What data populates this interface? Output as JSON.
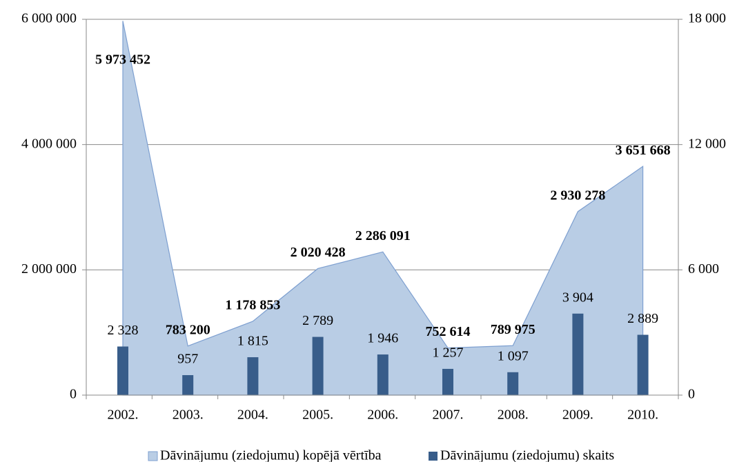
{
  "chart_data": {
    "type": "combo",
    "categories": [
      "2002.",
      "2003.",
      "2004.",
      "2005.",
      "2006.",
      "2007.",
      "2008.",
      "2009.",
      "2010."
    ],
    "series": [
      {
        "name": "Dāvinājumu (ziedojumu) kopējā vērtība",
        "type": "area",
        "axis": "y",
        "color": "#b9cde5",
        "line_color": "#7d9fd0",
        "values": [
          5973452,
          783200,
          1178853,
          2020428,
          2286091,
          752614,
          789975,
          2930278,
          3651668
        ],
        "value_labels": [
          "5 973 452",
          "783 200",
          "1 178 853",
          "2 020 428",
          "2 286 091",
          "752 614",
          "789 975",
          "2 930 278",
          "3 651 668"
        ]
      },
      {
        "name": "Dāvinājumu (ziedojumu) skaits",
        "type": "bar",
        "axis": "y2",
        "color": "#385d8a",
        "values": [
          2328,
          957,
          1815,
          2789,
          1946,
          1257,
          1097,
          3904,
          2889
        ],
        "value_labels": [
          "2 328",
          "957",
          "1 815",
          "2 789",
          "1 946",
          "1 257",
          "1 097",
          "3 904",
          "2 889"
        ]
      }
    ],
    "ylim": [
      0,
      6000000
    ],
    "yticks": [
      0,
      {
        "value": 2000000,
        "label": "2 000 000"
      },
      {
        "value": 4000000,
        "label": "4 000 000"
      },
      {
        "value": 6000000,
        "label": "6 000 000"
      }
    ],
    "y2lim": [
      0,
      18000
    ],
    "y2ticks": [
      0,
      {
        "value": 6000,
        "label": "6 000"
      },
      {
        "value": 12000,
        "label": "12 000"
      },
      {
        "value": 18000,
        "label": "18 000"
      }
    ],
    "grid": true,
    "legend": "bottom"
  }
}
